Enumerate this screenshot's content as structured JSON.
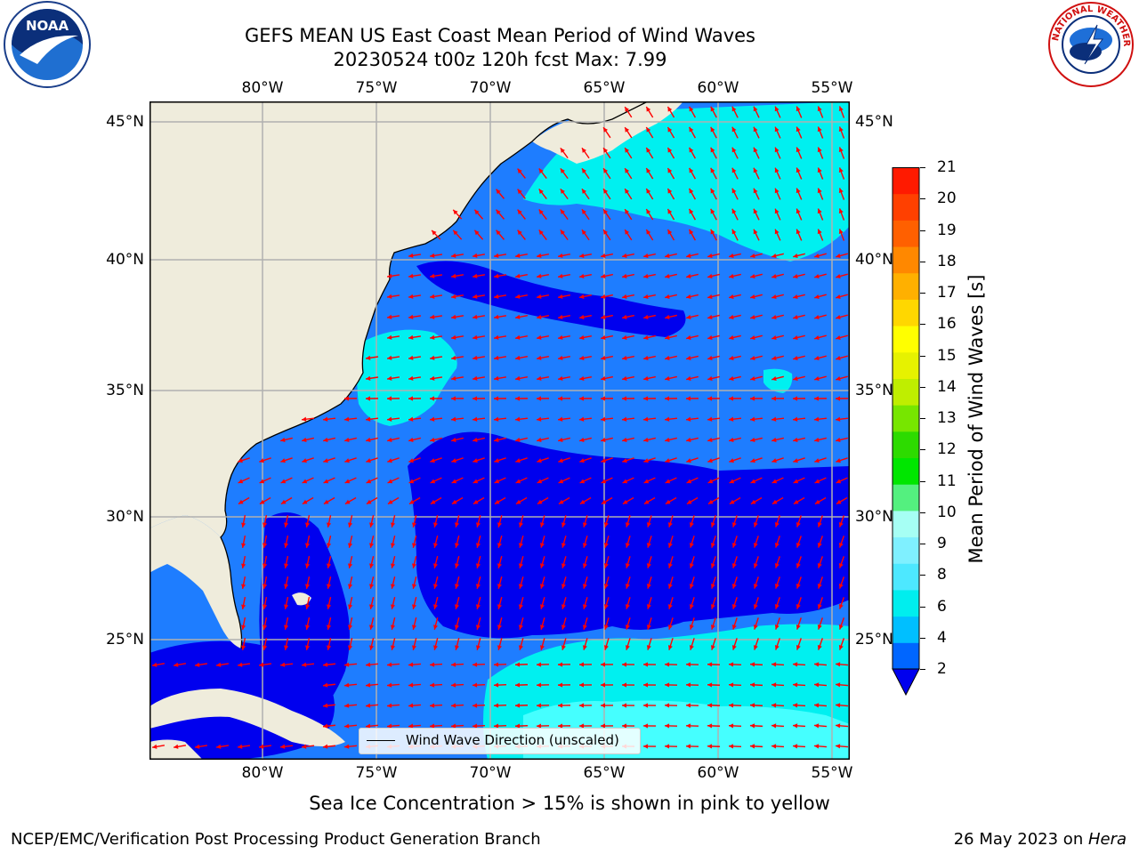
{
  "title": "GEFS MEAN US East Coast Mean Period of Wind Waves",
  "subtitle": "20230524 t00z 120h fcst   Max: 7.99",
  "top_lon_labels": [
    "80°W",
    "75°W",
    "70°W",
    "65°W",
    "60°W",
    "55°W"
  ],
  "bottom_lon_labels": [
    "80°W",
    "75°W",
    "70°W",
    "65°W",
    "60°W",
    "55°W"
  ],
  "left_lat_labels": [
    "45°N",
    "40°N",
    "35°N",
    "30°N",
    "25°N"
  ],
  "right_lat_labels": [
    "45°N",
    "40°N",
    "35°N",
    "30°N",
    "25°N"
  ],
  "legend_label": "Wind Wave Direction (unscaled)",
  "colorbar": {
    "label": "Mean Period of Wind Waves [s]",
    "ticks": [
      "21",
      "20",
      "19",
      "18",
      "17",
      "16",
      "15",
      "14",
      "13",
      "12",
      "11",
      "10",
      "9",
      "8",
      "6",
      "4",
      "2"
    ],
    "levels": [
      2,
      3,
      4,
      5,
      6,
      7,
      8,
      9,
      10,
      11,
      12,
      13,
      14,
      15,
      16,
      17,
      18,
      19,
      20,
      21
    ],
    "colors": [
      "#0066ff",
      "#00bfff",
      "#00eeee",
      "#4de8ff",
      "#7ff0ff",
      "#a6fff4",
      "#54f07f",
      "#00e600",
      "#2ddb00",
      "#77e600",
      "#bfee00",
      "#e6f200",
      "#ffff00",
      "#ffd700",
      "#ffb000",
      "#ff8800",
      "#ff6000",
      "#ff4000",
      "#ff1a00"
    ],
    "under_color": "#0000ee"
  },
  "colors": {
    "land": "#efecdc",
    "ocean_2_4": "#1e7dff",
    "ocean_under_2": "#0000ee",
    "ocean_4_6": "#00f0f0",
    "ocean_6_8": "#45ffff",
    "arrow": "#ff0000",
    "grid": "#b0b0b0"
  },
  "note": "Sea Ice Concentration > 15% is shown in pink to yellow",
  "footer_left": "NCEP/EMC/Verification Post Processing Product Generation Branch",
  "footer_date": "26 May 2023 on ",
  "footer_machine": "Hera",
  "logos": {
    "noaa": "NOAA",
    "nws": "NATIONAL WEATHER SERVICE"
  }
}
